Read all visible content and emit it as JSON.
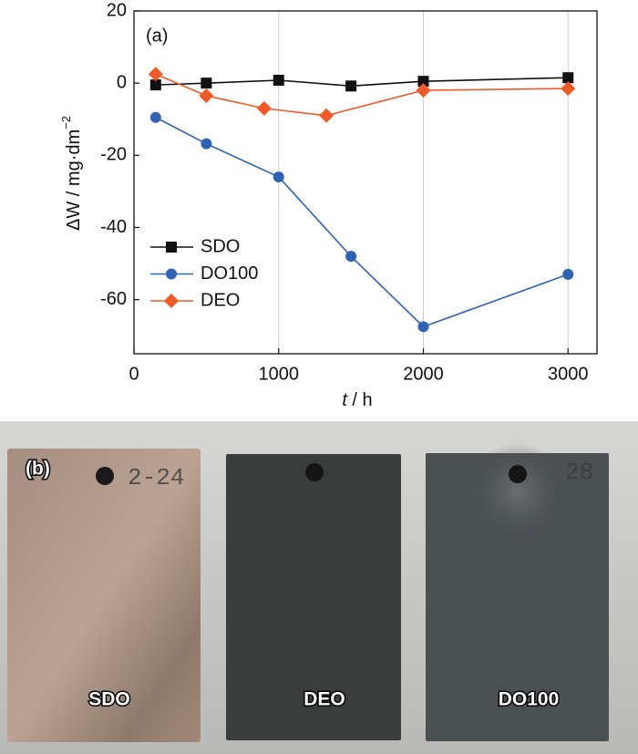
{
  "chart_data": {
    "type": "line",
    "panel_label": "(a)",
    "y_label": {
      "text": "ΔW / mg·dm",
      "superscript": "−2"
    },
    "x_label": {
      "variable": "t",
      "unit": " / h"
    },
    "xlim": [
      0,
      3200
    ],
    "ylim": [
      -75,
      20
    ],
    "xticks": [
      0,
      1000,
      2000,
      3000
    ],
    "yticks": [
      -60,
      -40,
      -20,
      0,
      20
    ],
    "grid": true,
    "legend": "left",
    "series": [
      {
        "name": "SDO",
        "color": "#111111",
        "marker": "square",
        "x": [
          150,
          500,
          1000,
          1500,
          2000,
          3000
        ],
        "values": [
          -0.5,
          0,
          0.8,
          -0.8,
          0.5,
          1.5
        ]
      },
      {
        "name": "DO100",
        "color": "#2d62b5",
        "marker": "circle",
        "x": [
          150,
          500,
          1000,
          1500,
          2000,
          3000
        ],
        "values": [
          -9.5,
          -16.8,
          -26,
          -48,
          -67.5,
          -53
        ]
      },
      {
        "name": "DEO",
        "color": "#ef5a26",
        "marker": "diamond",
        "x": [
          150,
          500,
          900,
          1330,
          2000,
          3000
        ],
        "values": [
          2.5,
          -3.5,
          -7,
          -9,
          -2,
          -1.5
        ]
      }
    ]
  },
  "photo": {
    "label": "(b)",
    "samples": [
      {
        "engraving": "2-24",
        "caption": "SDO"
      },
      {
        "engraving": "",
        "caption": "DEO"
      },
      {
        "engraving": "28",
        "caption": "DO100"
      }
    ]
  }
}
